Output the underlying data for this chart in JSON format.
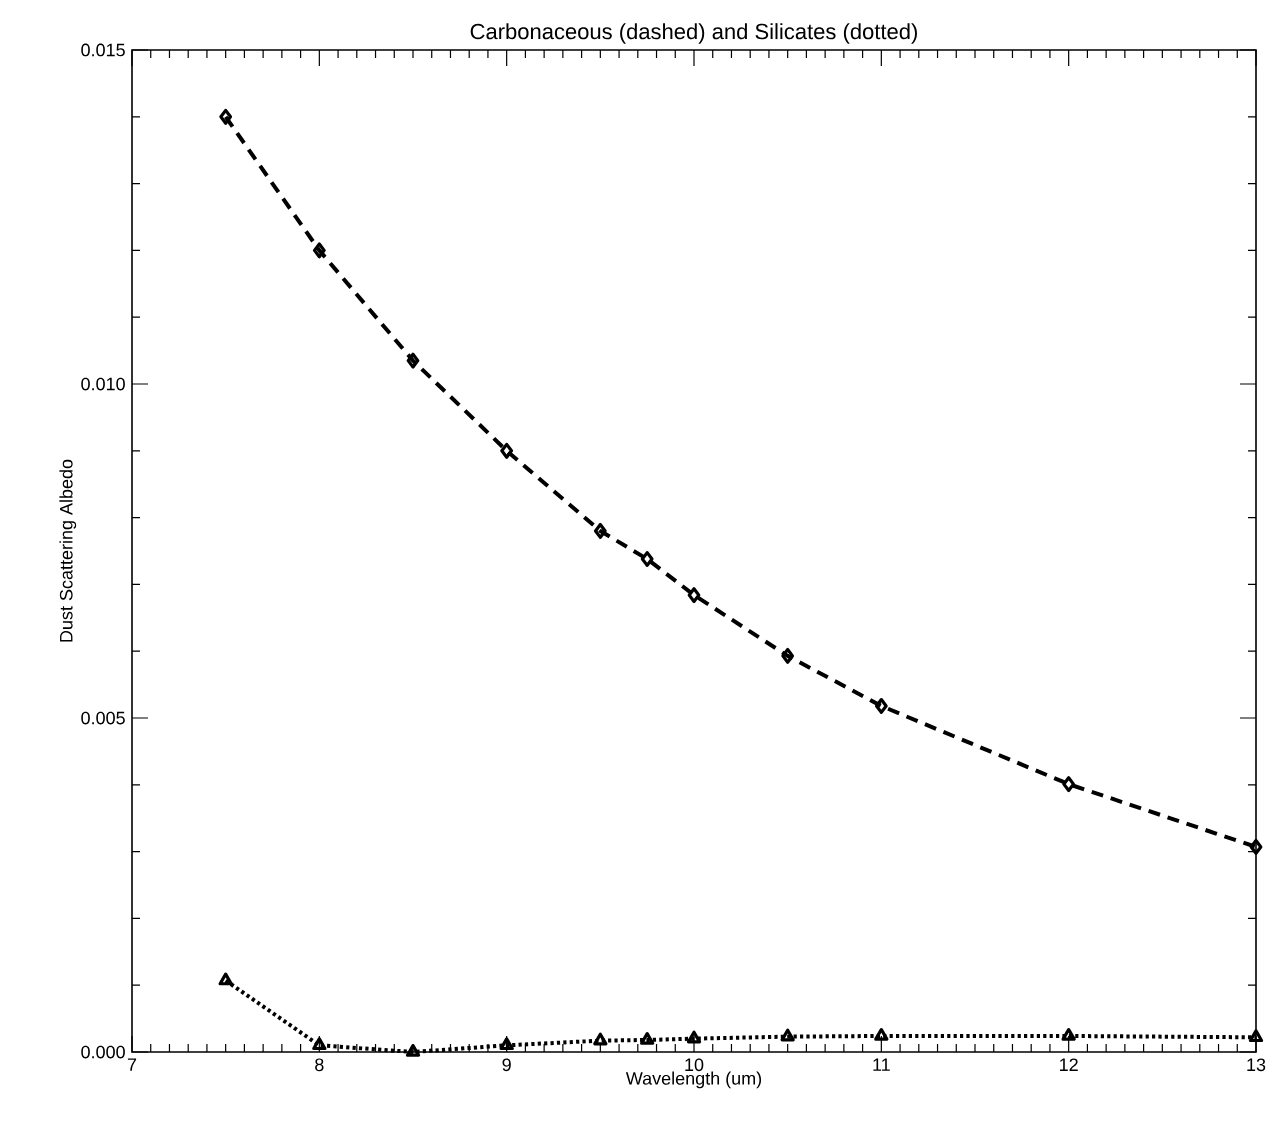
{
  "chart_data": {
    "type": "line",
    "title": "Carbonaceous (dashed) and Silicates (dotted)",
    "xlabel": "Wavelength (um)",
    "ylabel": "Dust Scattering Albedo",
    "x": [
      7.5,
      8,
      8.5,
      9,
      9.5,
      9.75,
      10,
      10.5,
      11,
      12,
      13
    ],
    "series": [
      {
        "color": "#000000",
        "line_style": "dashed",
        "marker": "diamond",
        "values": [
          0.014,
          0.012,
          0.01035,
          0.009,
          0.0078,
          0.00738,
          0.00684,
          0.00593,
          0.00518,
          0.00401,
          0.00307
        ]
      },
      {
        "color": "#000000",
        "line_style": "dotted",
        "marker": "triangle",
        "values": [
          0.00107,
          0.0001,
          0.0,
          0.0001,
          0.00017,
          0.00018,
          0.0002,
          0.00023,
          0.00024,
          0.00024,
          0.00022
        ]
      }
    ],
    "xlim": [
      7,
      13
    ],
    "xticks": [
      7,
      8,
      9,
      10,
      11,
      12,
      13
    ],
    "ylim": [
      0,
      0.015
    ],
    "yticks": [
      {
        "value": 0,
        "label": "0.000"
      },
      {
        "value": 0.005,
        "label": "0.005"
      },
      {
        "value": 0.01,
        "label": "0.010"
      },
      {
        "value": 0.015,
        "label": "0.015"
      }
    ]
  }
}
